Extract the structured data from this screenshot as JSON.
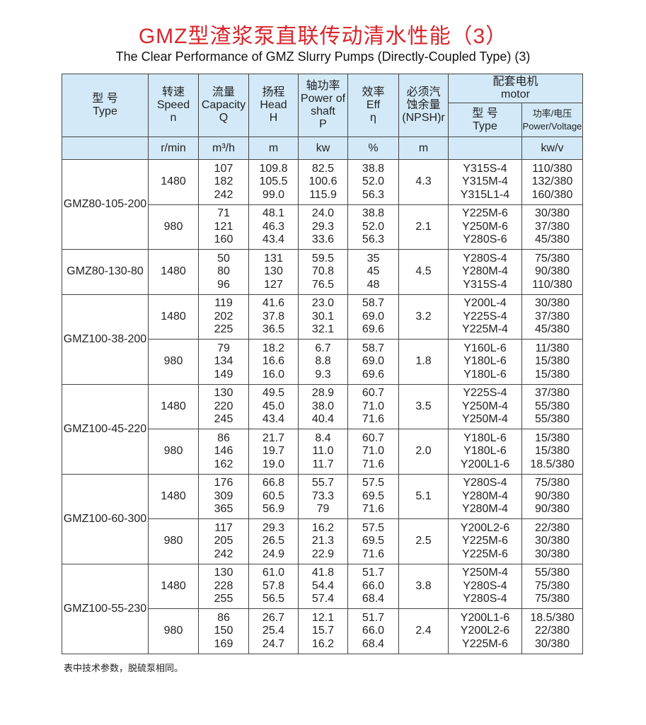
{
  "title": "GMZ型渣浆泵直联传动清水性能（3）",
  "subtitle": "The Clear Performance of GMZ Slurry Pumps (Directly-Coupled Type) (3)",
  "header": {
    "type": "型 号\nType",
    "speed": "转速\nSpeed\nn",
    "capacity": "流量\nCapacity\nQ",
    "head": "扬程\nHead\nH",
    "power": "轴功率\nPower of\nshaft\nP",
    "eff": "效率\nEff\nη",
    "npsh": "必须汽\n蚀余量\n(NPSH)r",
    "motor": "配套电机\nmotor",
    "motor_type": "型 号\nType",
    "motor_pv": "功率/电压\nPower/Voltage",
    "units": {
      "speed": "r/min",
      "capacity": "m³/h",
      "head": "m",
      "power": "kw",
      "eff": "%",
      "npsh": "m",
      "motor_type": "",
      "motor_pv": "kw/v"
    }
  },
  "groups": [
    {
      "type": "GMZ80-105-200",
      "speeds": [
        {
          "speed": "1480",
          "npsh": "4.3",
          "q": [
            "107",
            "182",
            "242"
          ],
          "h": [
            "109.8",
            "105.5",
            "99.0"
          ],
          "p": [
            "82.5",
            "100.6",
            "115.9"
          ],
          "eff": [
            "38.8",
            "52.0",
            "56.3"
          ],
          "motor": [
            "Y315S-4",
            "Y315M-4",
            "Y315L1-4"
          ],
          "pv": [
            "110/380",
            "132/380",
            "160/380"
          ]
        },
        {
          "speed": "980",
          "npsh": "2.1",
          "q": [
            "71",
            "121",
            "160"
          ],
          "h": [
            "48.1",
            "46.3",
            "43.4"
          ],
          "p": [
            "24.0",
            "29.3",
            "33.6"
          ],
          "eff": [
            "38.8",
            "52.0",
            "56.3"
          ],
          "motor": [
            "Y225M-6",
            "Y250M-6",
            "Y280S-6"
          ],
          "pv": [
            "30/380",
            "37/380",
            "45/380"
          ]
        }
      ]
    },
    {
      "type": "GMZ80-130-80",
      "speeds": [
        {
          "speed": "1480",
          "npsh": "4.5",
          "q": [
            "50",
            "80",
            "96"
          ],
          "h": [
            "131",
            "130",
            "127"
          ],
          "p": [
            "59.5",
            "70.8",
            "76.5"
          ],
          "eff": [
            "35",
            "45",
            "48"
          ],
          "motor": [
            "Y280S-4",
            "Y280M-4",
            "Y315S-4"
          ],
          "pv": [
            "75/380",
            "90/380",
            "110/380"
          ]
        }
      ]
    },
    {
      "type": "GMZ100-38-200",
      "speeds": [
        {
          "speed": "1480",
          "npsh": "3.2",
          "q": [
            "119",
            "202",
            "225"
          ],
          "h": [
            "41.6",
            "37.8",
            "36.5"
          ],
          "p": [
            "23.0",
            "30.1",
            "32.1"
          ],
          "eff": [
            "58.7",
            "69.0",
            "69.6"
          ],
          "motor": [
            "Y200L-4",
            "Y225S-4",
            "Y225M-4"
          ],
          "pv": [
            "30/380",
            "37/380",
            "45/380"
          ]
        },
        {
          "speed": "980",
          "npsh": "1.8",
          "q": [
            "79",
            "134",
            "149"
          ],
          "h": [
            "18.2",
            "16.6",
            "16.0"
          ],
          "p": [
            "6.7",
            "8.8",
            "9.3"
          ],
          "eff": [
            "58.7",
            "69.0",
            "69.6"
          ],
          "motor": [
            "Y160L-6",
            "Y180L-6",
            "Y180L-6"
          ],
          "pv": [
            "11/380",
            "15/380",
            "15/380"
          ]
        }
      ]
    },
    {
      "type": "GMZ100-45-220",
      "speeds": [
        {
          "speed": "1480",
          "npsh": "3.5",
          "q": [
            "130",
            "220",
            "245"
          ],
          "h": [
            "49.5",
            "45.0",
            "43.4"
          ],
          "p": [
            "28.9",
            "38.0",
            "40.4"
          ],
          "eff": [
            "60.7",
            "71.0",
            "71.6"
          ],
          "motor": [
            "Y225S-4",
            "Y250M-4",
            "Y250M-4"
          ],
          "pv": [
            "37/380",
            "55/380",
            "55/380"
          ]
        },
        {
          "speed": "980",
          "npsh": "2.0",
          "q": [
            "86",
            "146",
            "162"
          ],
          "h": [
            "21.7",
            "19.7",
            "19.0"
          ],
          "p": [
            "8.4",
            "11.0",
            "11.7"
          ],
          "eff": [
            "60.7",
            "71.0",
            "71.6"
          ],
          "motor": [
            "Y180L-6",
            "Y180L-6",
            "Y200L1-6"
          ],
          "pv": [
            "15/380",
            "15/380",
            "18.5/380"
          ]
        }
      ]
    },
    {
      "type": "GMZ100-60-300",
      "speeds": [
        {
          "speed": "1480",
          "npsh": "5.1",
          "q": [
            "176",
            "309",
            "365"
          ],
          "h": [
            "66.8",
            "60.5",
            "56.9"
          ],
          "p": [
            "55.7",
            "73.3",
            "79"
          ],
          "eff": [
            "57.5",
            "69.5",
            "71.6"
          ],
          "motor": [
            "Y280S-4",
            "Y280M-4",
            "Y280M-4"
          ],
          "pv": [
            "75/380",
            "90/380",
            "90/380"
          ]
        },
        {
          "speed": "980",
          "npsh": "2.5",
          "q": [
            "117",
            "205",
            "242"
          ],
          "h": [
            "29.3",
            "26.5",
            "24.9"
          ],
          "p": [
            "16.2",
            "21.3",
            "22.9"
          ],
          "eff": [
            "57.5",
            "69.5",
            "71.6"
          ],
          "motor": [
            "Y200L2-6",
            "Y225M-6",
            "Y225M-6"
          ],
          "pv": [
            "22/380",
            "30/380",
            "30/380"
          ]
        }
      ]
    },
    {
      "type": "GMZ100-55-230",
      "speeds": [
        {
          "speed": "1480",
          "npsh": "3.8",
          "q": [
            "130",
            "228",
            "255"
          ],
          "h": [
            "61.0",
            "57.8",
            "56.5"
          ],
          "p": [
            "41.8",
            "54.4",
            "57.4"
          ],
          "eff": [
            "51.7",
            "66.0",
            "68.4"
          ],
          "motor": [
            "Y250M-4",
            "Y280S-4",
            "Y280S-4"
          ],
          "pv": [
            "55/380",
            "75/380",
            "75/380"
          ]
        },
        {
          "speed": "980",
          "npsh": "2.4",
          "q": [
            "86",
            "150",
            "169"
          ],
          "h": [
            "26.7",
            "25.4",
            "24.7"
          ],
          "p": [
            "12.1",
            "15.7",
            "16.2"
          ],
          "eff": [
            "51.7",
            "66.0",
            "68.4"
          ],
          "motor": [
            "Y200L1-6",
            "Y200L2-6",
            "Y225M-6"
          ],
          "pv": [
            "18.5/380",
            "22/380",
            "30/380"
          ]
        }
      ]
    }
  ],
  "note": "表中技术参数，脱硫泵相同。"
}
